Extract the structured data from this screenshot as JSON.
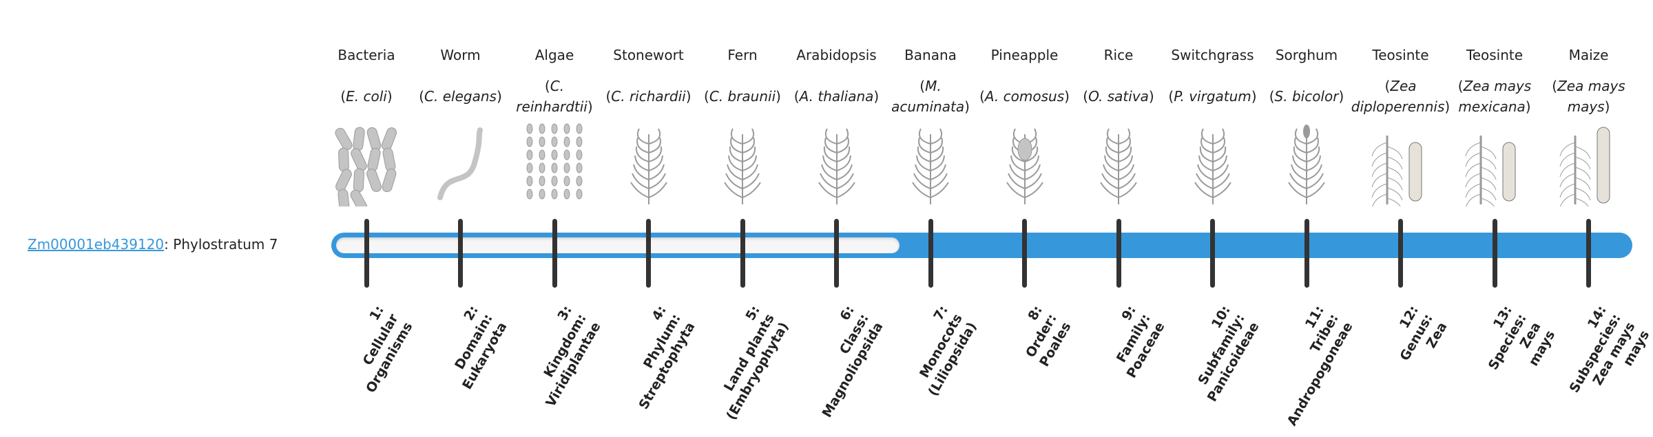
{
  "gene": {
    "id": "Zm00001eb439120",
    "suffix": ": Phylostratum 7",
    "phylostratum": 7
  },
  "colors": {
    "accent": "#3797db",
    "tick": "#333333",
    "empty": "#f6f6f6"
  },
  "strata": [
    {
      "common": "Bacteria",
      "species": "E. coli",
      "rank": [
        "1:",
        "Cellular",
        "Organisms"
      ],
      "icon": "bacteria-illustration"
    },
    {
      "common": "Worm",
      "species": "C. elegans",
      "rank": [
        "2:",
        "Domain:",
        "Eukaryota"
      ],
      "icon": "worm-illustration"
    },
    {
      "common": "Algae",
      "species": "C. reinhardtii",
      "rank": [
        "3:",
        "Kingdom:",
        "Viridiplantae"
      ],
      "icon": "algae-illustration"
    },
    {
      "common": "Stonewort",
      "species": "C. richardii",
      "rank": [
        "4:",
        "Phylum:",
        "Streptophyta"
      ],
      "icon": "stonewort-illustration"
    },
    {
      "common": "Fern",
      "species": "C. braunii",
      "rank": [
        "5:",
        "Land plants",
        "(Embryophyta)"
      ],
      "icon": "fern-illustration"
    },
    {
      "common": "Arabidopsis",
      "species": "A. thaliana",
      "rank": [
        "6:",
        "Class:",
        "Magnoliopsida"
      ],
      "icon": "arabidopsis-illustration"
    },
    {
      "common": "Banana",
      "species": "M. acuminata",
      "rank": [
        "7:",
        "Monocots",
        "(Liliopsida)"
      ],
      "icon": "banana-illustration"
    },
    {
      "common": "Pineapple",
      "species": "A. comosus",
      "rank": [
        "8:",
        "Order:",
        "Poales"
      ],
      "icon": "pineapple-illustration"
    },
    {
      "common": "Rice",
      "species": "O. sativa",
      "rank": [
        "9:",
        "Family:",
        "Poaceae"
      ],
      "icon": "rice-illustration"
    },
    {
      "common": "Switchgrass",
      "species": "P. virgatum",
      "rank": [
        "10:",
        "Subfamily:",
        "Panicoideae"
      ],
      "icon": "switchgrass-illustration"
    },
    {
      "common": "Sorghum",
      "species": "S. bicolor",
      "rank": [
        "11:",
        "Tribe:",
        "Andropogoneae"
      ],
      "icon": "sorghum-illustration"
    },
    {
      "common": "Teosinte",
      "species": "Zea diploperennis",
      "rank": [
        "12:",
        "Genus:",
        "Zea"
      ],
      "icon": "teosinte-illustration"
    },
    {
      "common": "Teosinte",
      "species": "Zea mays mexicana",
      "rank": [
        "13:",
        "Species:",
        "Zea",
        "mays"
      ],
      "icon": "teosinte-illustration"
    },
    {
      "common": "Maize",
      "species": "Zea mays mays",
      "rank": [
        "14:",
        "Subspecies:",
        "Zea mays",
        "mays"
      ],
      "icon": "maize-illustration"
    }
  ]
}
